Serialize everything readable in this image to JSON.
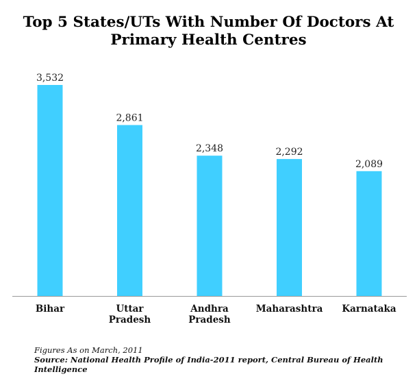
{
  "colors": {
    "bar": "#40CFFF",
    "axis": "#999999"
  },
  "footer": {
    "note": "Figures As on March, 2011",
    "source": "Source: National Health Profile of India-2011 report, Central Bureau of Health Intelligence"
  },
  "chart_data": {
    "type": "bar",
    "title": "Top 5 States/UTs With Number Of Doctors At Primary Health Centres",
    "categories": [
      "Bihar",
      "Uttar Pradesh",
      "Andhra Pradesh",
      "Maharashtra",
      "Karnataka"
    ],
    "values": [
      3532,
      2861,
      2348,
      2292,
      2089
    ],
    "value_labels": [
      "3,532",
      "2,861",
      "2,348",
      "2,292",
      "2,089"
    ],
    "xlabel": "",
    "ylabel": "",
    "ylim": [
      0,
      3532
    ],
    "grid": false,
    "legend": "none"
  }
}
